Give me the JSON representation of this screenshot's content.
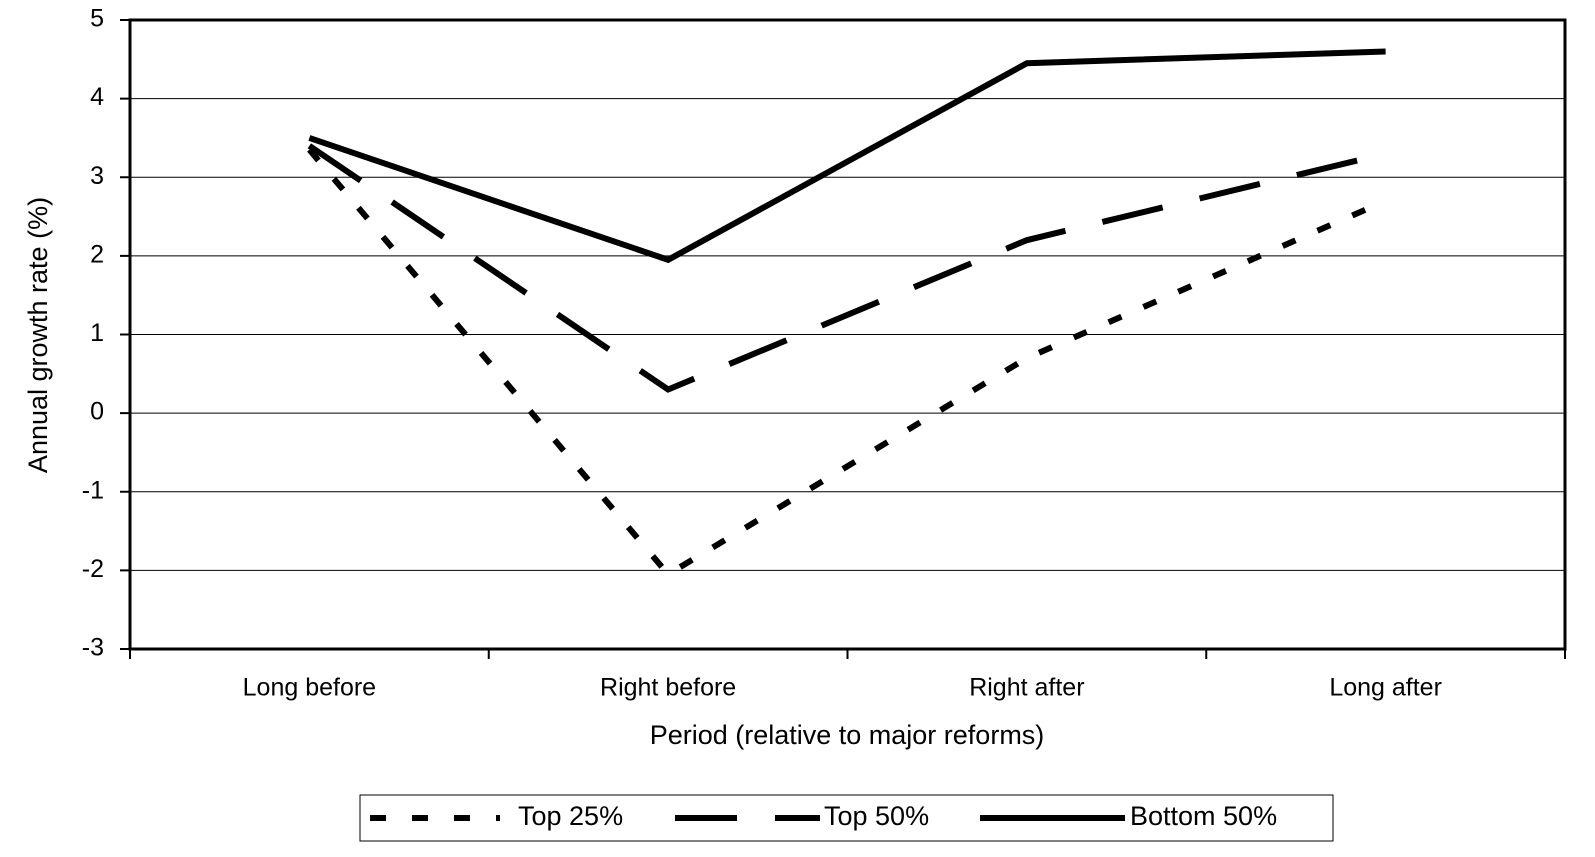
{
  "chart_data": {
    "type": "line",
    "y_label": "Annual growth rate (%)",
    "x_label": "Period (relative to major reforms)",
    "categories": [
      "Long before",
      "Right before",
      "Right after",
      "Long after"
    ],
    "series": [
      {
        "name": "Top 25%",
        "color": "#000000",
        "values": [
          3.35,
          -2.05,
          0.7,
          2.7
        ]
      },
      {
        "name": "Top 50%",
        "color": "#000000",
        "values": [
          3.4,
          0.3,
          2.2,
          3.3
        ]
      },
      {
        "name": "Bottom 50%",
        "color": "#000000",
        "values": [
          3.5,
          1.95,
          4.45,
          4.6
        ]
      }
    ],
    "ylim": [
      -3,
      5
    ],
    "yticks": [
      -3,
      -2,
      -1,
      0,
      1,
      2,
      3,
      4,
      5
    ],
    "grid": true
  }
}
